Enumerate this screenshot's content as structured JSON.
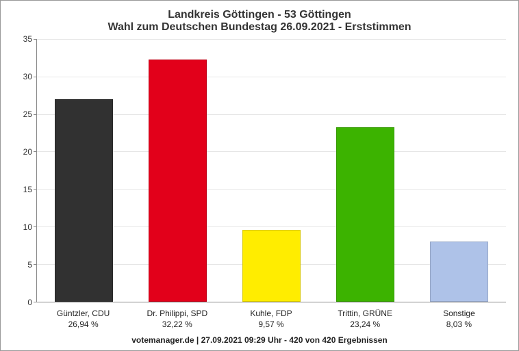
{
  "chart": {
    "type": "bar",
    "title_line1": "Landkreis Göttingen - 53 Göttingen",
    "title_line2": "Wahl zum Deutschen Bundestag 26.09.2021  - Erststimmen",
    "title_fontsize": 16,
    "title_color": "#333333",
    "footer": "votemanager.de | 27.09.2021 09:29 Uhr - 420 von 420 Ergebnissen",
    "footer_fontsize": 12,
    "background_color": "#ffffff",
    "grid_color": "#e6e6e6",
    "axis_color": "#888888",
    "label_fontsize": 12,
    "ylim": [
      0,
      35
    ],
    "ytick_step": 5,
    "yticks": [
      0,
      5,
      10,
      15,
      20,
      25,
      30,
      35
    ],
    "bar_width_pct": 62,
    "categories": [
      {
        "name": "Güntzler, CDU",
        "pct_label": "26,94 %",
        "value": 26.94,
        "color": "#313131"
      },
      {
        "name": "Dr. Philippi, SPD",
        "pct_label": "32,22 %",
        "value": 32.22,
        "color": "#e2001a"
      },
      {
        "name": "Kuhle, FDP",
        "pct_label": "9,57 %",
        "value": 9.57,
        "color": "#ffed00"
      },
      {
        "name": "Trittin, GRÜNE",
        "pct_label": "23,24 %",
        "value": 23.24,
        "color": "#3cb300"
      },
      {
        "name": "Sonstige",
        "pct_label": "8,03 %",
        "value": 8.03,
        "color": "#aec2e8"
      }
    ]
  }
}
